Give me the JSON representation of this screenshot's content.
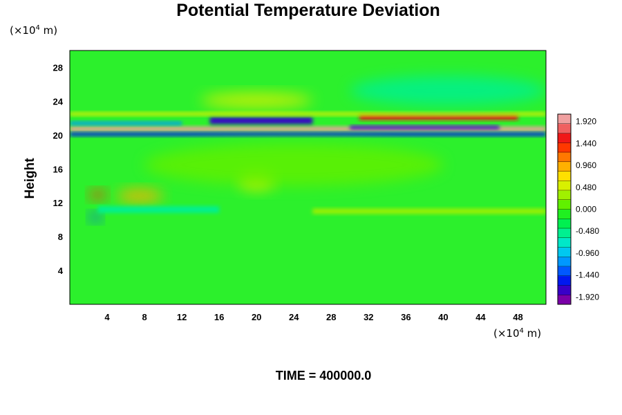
{
  "chart_data": {
    "type": "heatmap",
    "title": "Potential Temperature Deviation",
    "ylabel": "Height",
    "x_unit": {
      "prefix": "(×10",
      "exp": "4",
      "suffix": " m)"
    },
    "y_unit": {
      "prefix": "(×10",
      "exp": "4",
      "suffix": " m)"
    },
    "xlim": [
      0,
      51
    ],
    "ylim": [
      0,
      30
    ],
    "x_ticks": [
      4,
      8,
      12,
      16,
      20,
      24,
      28,
      32,
      36,
      40,
      44,
      48
    ],
    "y_ticks": [
      4,
      8,
      12,
      16,
      20,
      24,
      28
    ],
    "colorbar": {
      "range": [
        -2.08,
        2.08
      ],
      "tick_values": [
        1.92,
        1.44,
        0.96,
        0.48,
        0.0,
        -0.48,
        -0.96,
        -1.44,
        -1.92
      ],
      "tick_labels": [
        "1.920",
        "1.440",
        "0.960",
        "0.480",
        "0.000",
        "-0.480",
        "-0.960",
        "-1.440",
        "-1.920"
      ],
      "colors": [
        "#7a00a8",
        "#3800c8",
        "#0018f0",
        "#0058ff",
        "#0098ff",
        "#00c8f0",
        "#00e8c8",
        "#00f090",
        "#00f050",
        "#20f020",
        "#60f000",
        "#a0f000",
        "#d8f000",
        "#ffe000",
        "#ffb000",
        "#ff7800",
        "#ff3800",
        "#f01818",
        "#f06060",
        "#f0a0a0"
      ]
    },
    "features": [
      {
        "kind": "band",
        "x": [
          0,
          51
        ],
        "y": [
          20.45,
          21.0
        ],
        "value": 2.0
      },
      {
        "kind": "band",
        "x": [
          15,
          26
        ],
        "y": [
          21.3,
          22.1
        ],
        "value": -1.8
      },
      {
        "kind": "band",
        "x": [
          30,
          46
        ],
        "y": [
          20.7,
          21.1
        ],
        "value": -1.7
      },
      {
        "kind": "band",
        "x": [
          0,
          51
        ],
        "y": [
          19.9,
          20.3
        ],
        "value": -1.5
      },
      {
        "kind": "band",
        "x": [
          0,
          12
        ],
        "y": [
          21.2,
          21.6
        ],
        "value": -1.2
      },
      {
        "kind": "band",
        "x": [
          31,
          48
        ],
        "y": [
          21.8,
          22.4
        ],
        "value": 1.5
      },
      {
        "kind": "band",
        "x": [
          0,
          51
        ],
        "y": [
          22.3,
          22.7
        ],
        "value": 0.6
      },
      {
        "kind": "blob",
        "x": [
          14,
          26
        ],
        "y": [
          23.2,
          25.0
        ],
        "value": 0.55
      },
      {
        "kind": "blob",
        "x": [
          30,
          51
        ],
        "y": [
          23.5,
          27.0
        ],
        "value": -0.45
      },
      {
        "kind": "blob",
        "x": [
          2,
          4
        ],
        "y": [
          12.4,
          13.5
        ],
        "value": 1.3
      },
      {
        "kind": "blob",
        "x": [
          5,
          10
        ],
        "y": [
          12.0,
          13.6
        ],
        "value": 0.9
      },
      {
        "kind": "blob",
        "x": [
          18,
          22
        ],
        "y": [
          13.5,
          15.8
        ],
        "value": 0.45
      },
      {
        "kind": "blob",
        "x": [
          2,
          3.5
        ],
        "y": [
          9.8,
          10.8
        ],
        "value": -1.3
      },
      {
        "kind": "band",
        "x": [
          3,
          16
        ],
        "y": [
          10.8,
          11.6
        ],
        "value": -0.6
      },
      {
        "kind": "band",
        "x": [
          26,
          51
        ],
        "y": [
          10.7,
          11.3
        ],
        "value": 0.3
      },
      {
        "kind": "blob",
        "x": [
          8,
          40
        ],
        "y": [
          14.0,
          19.0
        ],
        "value": 0.2
      }
    ]
  },
  "footer": {
    "time_label": "TIME = 400000.0"
  }
}
